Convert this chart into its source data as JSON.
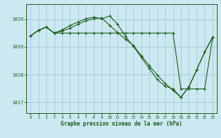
{
  "title": "Graphe pression niveau de la mer (hPa)",
  "background_color": "#cce8f0",
  "grid_color": "#aaccdd",
  "line_color": "#1a5c1a",
  "xlim": [
    -0.5,
    23.5
  ],
  "ylim": [
    1016.6,
    1020.55
  ],
  "yticks": [
    1017,
    1018,
    1019,
    1020
  ],
  "xtick_fontsize": 4.2,
  "ytick_fontsize": 5.0,
  "xlabel_fontsize": 5.5,
  "series": [
    {
      "x": [
        0,
        1,
        2,
        3,
        4,
        5,
        6,
        7,
        8,
        9,
        10,
        11,
        12,
        13,
        14,
        15,
        16,
        17,
        18,
        19,
        20,
        21,
        22,
        23
      ],
      "y": [
        1019.4,
        1019.6,
        1019.72,
        1019.5,
        1019.62,
        1019.78,
        1019.9,
        1020.02,
        1020.08,
        1020.02,
        1020.12,
        1019.82,
        1019.38,
        1019.02,
        1018.62,
        1018.22,
        1017.82,
        1017.58,
        1017.48,
        1017.18,
        1017.55,
        1018.18,
        1018.82,
        1019.35
      ]
    },
    {
      "x": [
        0,
        1,
        2,
        3,
        4,
        5,
        6,
        7,
        8,
        9,
        10,
        11,
        12,
        13,
        14,
        15,
        16,
        17,
        18,
        19,
        20,
        21,
        22,
        23
      ],
      "y": [
        1019.4,
        1019.6,
        1019.72,
        1019.5,
        1019.5,
        1019.5,
        1019.5,
        1019.5,
        1019.5,
        1019.5,
        1019.5,
        1019.5,
        1019.5,
        1019.5,
        1019.5,
        1019.5,
        1019.5,
        1019.5,
        1019.5,
        1017.48,
        1017.48,
        1017.48,
        1017.48,
        1019.35
      ]
    },
    {
      "x": [
        0,
        1,
        2,
        3,
        4,
        5,
        6,
        7,
        8,
        9,
        10,
        11,
        12,
        13,
        14,
        15,
        16,
        17,
        18,
        19,
        20,
        21,
        22,
        23
      ],
      "y": [
        1019.4,
        1019.6,
        1019.72,
        1019.5,
        1019.58,
        1019.68,
        1019.82,
        1019.95,
        1020.02,
        1020.05,
        1019.78,
        1019.52,
        1019.28,
        1019.05,
        1018.68,
        1018.32,
        1017.98,
        1017.68,
        1017.42,
        1017.18,
        1017.55,
        1018.18,
        1018.82,
        1019.35
      ]
    }
  ]
}
